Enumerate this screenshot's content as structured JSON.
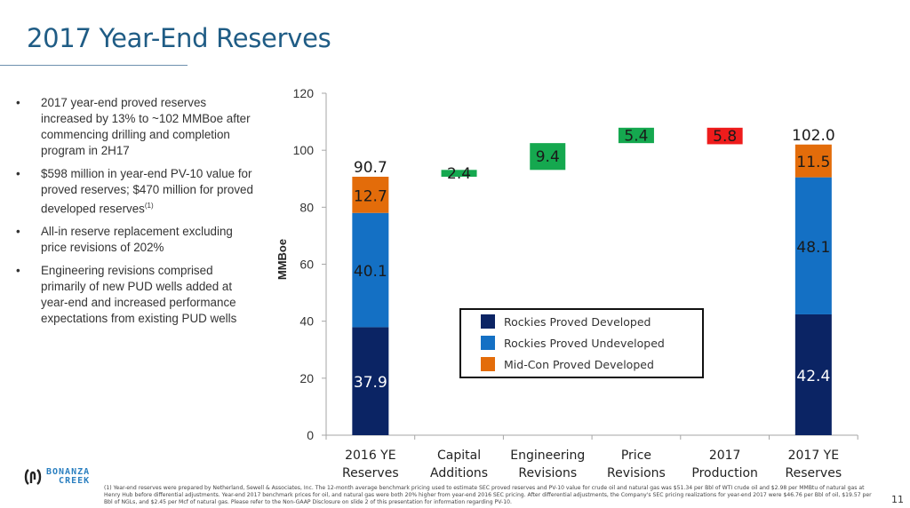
{
  "slide": {
    "title": "2017 Year-End Reserves",
    "page_number": "11",
    "bullets": [
      {
        "text": "2017 year-end proved reserves increased by 13% to ~102 MMBoe after commencing drilling and completion program in 2H17",
        "sup": ""
      },
      {
        "text": "$598 million in year-end PV-10 value for proved reserves; $470 million for proved developed reserves",
        "sup": "(1)"
      },
      {
        "text": "All-in reserve replacement excluding price revisions of 202%",
        "sup": ""
      },
      {
        "text": "Engineering revisions comprised primarily of new PUD wells added at year-end and increased performance expectations from existing PUD wells",
        "sup": ""
      }
    ],
    "bullet_glyph": "•",
    "footnote": "(1) Year-end reserves were prepared by Netherland, Sewell & Associates, Inc. The 12-month average benchmark pricing used to estimate SEC proved reserves and PV-10 value for crude oil and natural gas was $51.34 per Bbl of WTI crude oil and $2.98 per MMBtu of natural gas at Henry Hub before differential adjustments. Year-end 2017 benchmark prices for oil, and natural gas were both 20% higher from year-end 2016 SEC pricing. After differential adjustments, the Company's SEC pricing realizations for year-end 2017 were $46.76 per Bbl of oil, $19.57 per Bbl of NGLs, and $2.45 per Mcf of natural gas. Please refer to the Non-GAAP Disclosure on slide 2 of this presentation for information regarding PV-10.",
    "logo": {
      "line1": "BONANZA",
      "line2": "CREEK",
      "icon": "bonanza-creek-logo-icon"
    }
  },
  "colors": {
    "title": "#1f5c85",
    "rockies_pd": "#0b2464",
    "rockies_pud": "#1470c4",
    "midcon_pd": "#e36c0a",
    "increase": "#15a84f",
    "decrease": "#ee1c1c",
    "axis": "#a6a6a6"
  },
  "chart_data": {
    "type": "bar",
    "subtype": "waterfall-stacked",
    "title": "",
    "xlabel": "",
    "ylabel": "MMBoe",
    "ylim": [
      0,
      120
    ],
    "yticks": [
      0,
      20,
      40,
      60,
      80,
      100,
      120
    ],
    "grid": false,
    "legend_position": "center-right",
    "categories": [
      [
        "2016 YE",
        "Reserves"
      ],
      [
        "Capital",
        "Additions"
      ],
      [
        "Engineering",
        "Revisions"
      ],
      [
        "Price",
        "Revisions"
      ],
      [
        "2017",
        "Production"
      ],
      [
        "2017 YE",
        "Reserves"
      ]
    ],
    "series": [
      {
        "name": "Rockies Proved Developed",
        "color_key": "rockies_pd",
        "values": [
          37.9,
          null,
          null,
          null,
          null,
          42.4
        ]
      },
      {
        "name": "Rockies Proved Undeveloped",
        "color_key": "rockies_pud",
        "values": [
          40.1,
          null,
          null,
          null,
          null,
          48.1
        ]
      },
      {
        "name": "Mid-Con Proved Developed",
        "color_key": "midcon_pd",
        "values": [
          12.7,
          null,
          null,
          null,
          null,
          11.5
        ]
      }
    ],
    "totals": [
      90.7,
      null,
      null,
      null,
      null,
      102.0
    ],
    "total_labels": [
      "90.7",
      "",
      "",
      "",
      "",
      "102.0"
    ],
    "steps": [
      null,
      {
        "start": 90.7,
        "delta": 2.4,
        "label": "2.4",
        "kind": "increase"
      },
      {
        "start": 93.1,
        "delta": 9.4,
        "label": "9.4",
        "kind": "increase"
      },
      {
        "start": 102.5,
        "delta": 5.4,
        "label": "5.4",
        "kind": "increase"
      },
      {
        "start": 107.9,
        "delta": -5.8,
        "label": "5.8",
        "kind": "decrease"
      },
      null
    ],
    "segment_labels": [
      [
        "37.9",
        "40.1",
        "12.7"
      ],
      null,
      null,
      null,
      null,
      [
        "42.4",
        "48.1",
        "11.5"
      ]
    ]
  }
}
